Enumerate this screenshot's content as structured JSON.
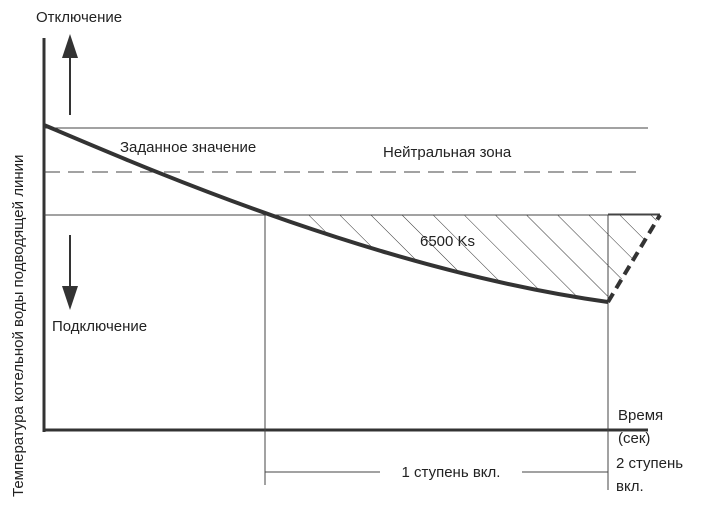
{
  "labels": {
    "off": "Отключение",
    "setpoint": "Заданное значение",
    "neutral_zone": "Нейтральная зона",
    "integral": "6500 Ks",
    "on": "Подключение",
    "y_axis": "Температура котельной воды подводящей линии",
    "time": "Время",
    "time_unit": "(сек)",
    "stage1": "1 ступень вкл.",
    "stage2_line1": "2 ступень",
    "stage2_line2": "вкл."
  }
}
